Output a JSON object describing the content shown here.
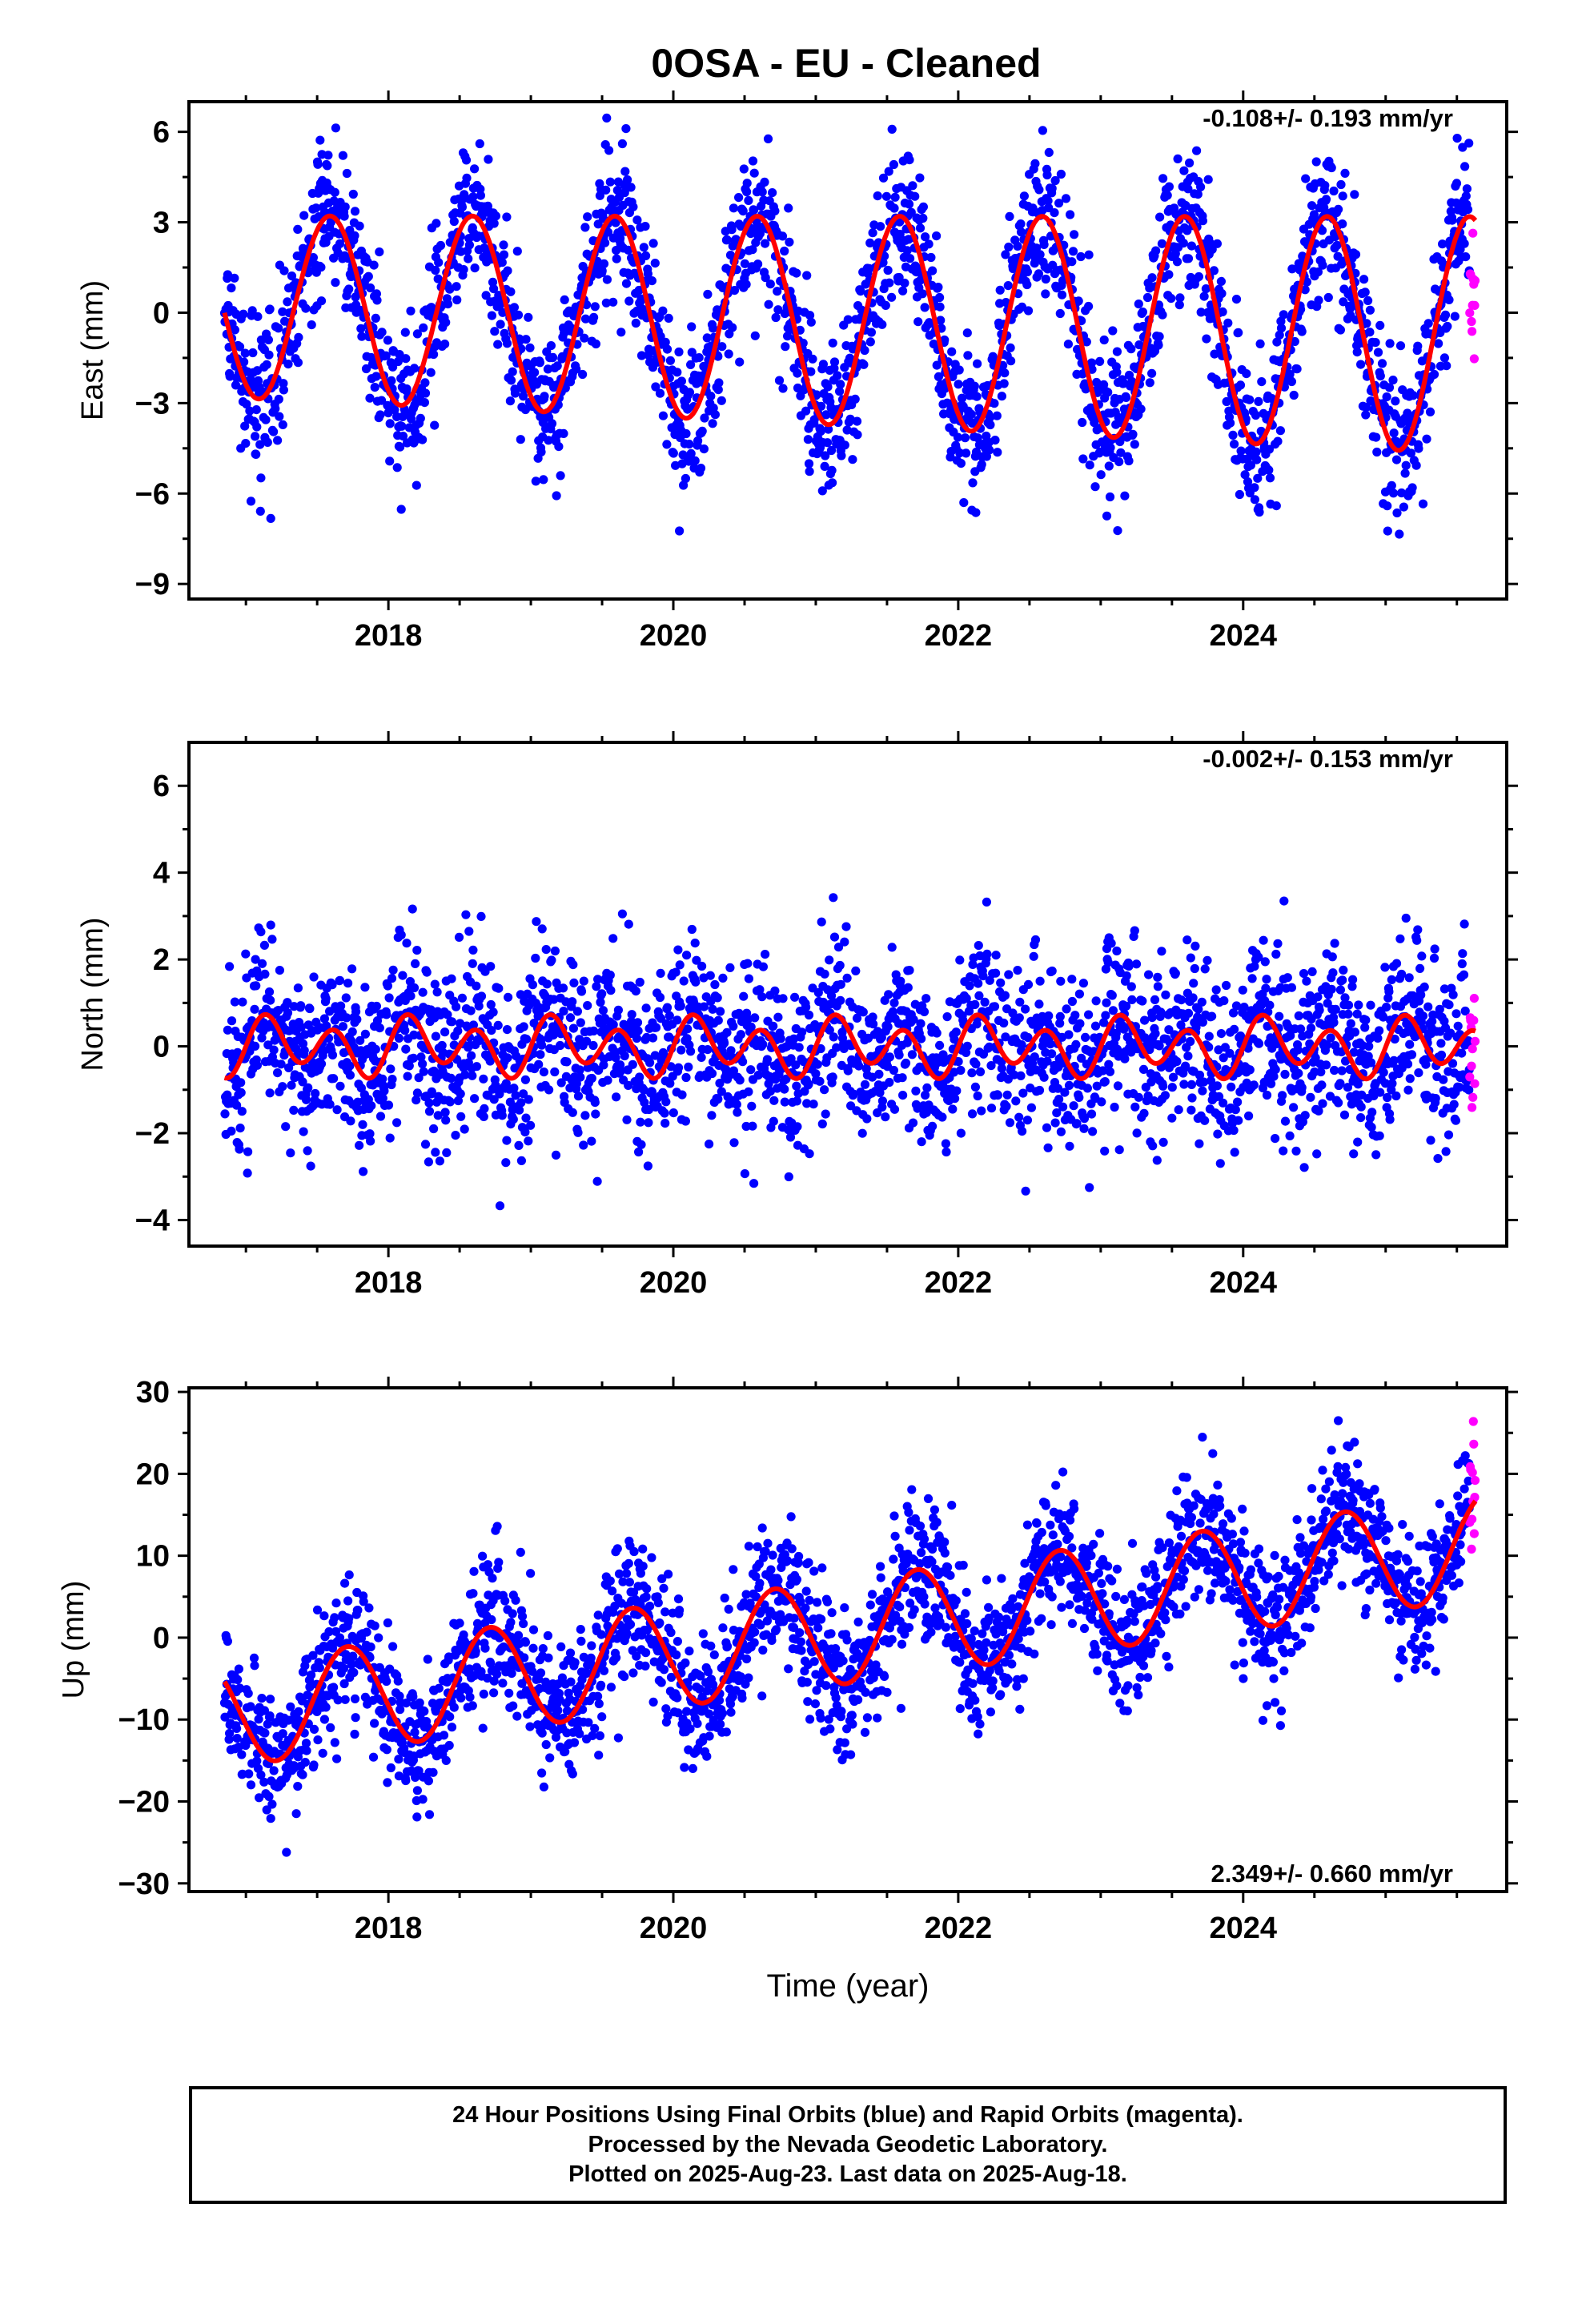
{
  "title": "0OSA  - EU - Cleaned",
  "colors": {
    "final_orbits": "#0000ff",
    "rapid_orbits": "#ff00ff",
    "model": "#ff0000",
    "frame": "#000000"
  },
  "chart_data": [
    {
      "type": "scatter",
      "panel": "east",
      "ylabel": "East (mm)",
      "xlabel": "",
      "xlim": [
        2016.6,
        2025.85
      ],
      "ylim": [
        -9.5,
        7.0
      ],
      "xticks": [
        2018,
        2020,
        2022,
        2024
      ],
      "xtick_labels": [
        "2018",
        "2020",
        "2022",
        "2024"
      ],
      "yticks": [
        -9,
        -6,
        -3,
        0,
        3,
        6
      ],
      "ytick_labels": [
        "−9",
        "−6",
        "−3",
        "0",
        "3",
        "6"
      ],
      "rate_label": "-0.108+/- 0.193 mm/yr",
      "rate_label_position": "top-right",
      "data_span": [
        2016.85,
        2025.63
      ],
      "rapid_start": 2025.5,
      "model": {
        "offset": 0.2,
        "rate": -0.108,
        "annual_cos": -2.55,
        "annual_sin": -1.6,
        "semiannual_cos": 0.0,
        "semiannual_sin": 0.0,
        "amp_growth": 0.035
      },
      "scatter_sigma": 1.25,
      "series": [
        {
          "name": "Final Orbits",
          "color": "#0000ff"
        },
        {
          "name": "Rapid Orbits",
          "color": "#ff00ff"
        },
        {
          "name": "Model",
          "color": "#ff0000"
        }
      ]
    },
    {
      "type": "scatter",
      "panel": "north",
      "ylabel": "North (mm)",
      "xlabel": "",
      "xlim": [
        2016.6,
        2025.85
      ],
      "ylim": [
        -4.6,
        7.0
      ],
      "xticks": [
        2018,
        2020,
        2022,
        2024
      ],
      "xtick_labels": [
        "2018",
        "2020",
        "2022",
        "2024"
      ],
      "yticks": [
        -4,
        -2,
        0,
        2,
        4,
        6
      ],
      "ytick_labels": [
        "−4",
        "−2",
        "0",
        "2",
        "4",
        "6"
      ],
      "rate_label": "-0.002+/- 0.153 mm/yr",
      "rate_label_position": "top-right",
      "data_span": [
        2016.85,
        2025.63
      ],
      "rapid_start": 2025.5,
      "model": {
        "offset": 0.0,
        "rate": -0.002,
        "annual_cos": 0.0,
        "annual_sin": 0.25,
        "semiannual_cos": 0.0,
        "semiannual_sin": 0.55,
        "amp_growth": 0.0
      },
      "scatter_sigma": 1.0,
      "series": [
        {
          "name": "Final Orbits",
          "color": "#0000ff"
        },
        {
          "name": "Rapid Orbits",
          "color": "#ff00ff"
        },
        {
          "name": "Model",
          "color": "#ff0000"
        }
      ]
    },
    {
      "type": "scatter",
      "panel": "up",
      "ylabel": "Up (mm)",
      "xlabel": "Time (year)",
      "xlim": [
        2016.6,
        2025.85
      ],
      "ylim": [
        -31.0,
        30.5
      ],
      "xticks": [
        2018,
        2020,
        2022,
        2024
      ],
      "xtick_labels": [
        "2018",
        "2020",
        "2022",
        "2024"
      ],
      "yticks": [
        -30,
        -20,
        -10,
        0,
        10,
        20,
        30
      ],
      "ytick_labels": [
        "−30",
        "−20",
        "−10",
        "0",
        "10",
        "20",
        "30"
      ],
      "rate_label": "2.349+/- 0.660 mm/yr",
      "rate_label_position": "bottom-right",
      "data_span": [
        2016.85,
        2025.63
      ],
      "rapid_start": 2025.5,
      "model": {
        "offset": -9.5,
        "rate": 2.349,
        "annual_cos": -1.5,
        "annual_sin": -6.2,
        "semiannual_cos": 0.0,
        "semiannual_sin": 0.0,
        "amp_growth": 0.0
      },
      "scatter_sigma": 4.2,
      "series": [
        {
          "name": "Final Orbits",
          "color": "#0000ff"
        },
        {
          "name": "Rapid Orbits",
          "color": "#ff00ff"
        },
        {
          "name": "Model",
          "color": "#ff0000"
        }
      ]
    }
  ],
  "caption": {
    "line1": "24 Hour Positions Using Final Orbits (blue) and Rapid Orbits (magenta).",
    "line2": "Processed by the Nevada Geodetic Laboratory.",
    "line3": "Plotted on 2025-Aug-23. Last data on 2025-Aug-18."
  }
}
